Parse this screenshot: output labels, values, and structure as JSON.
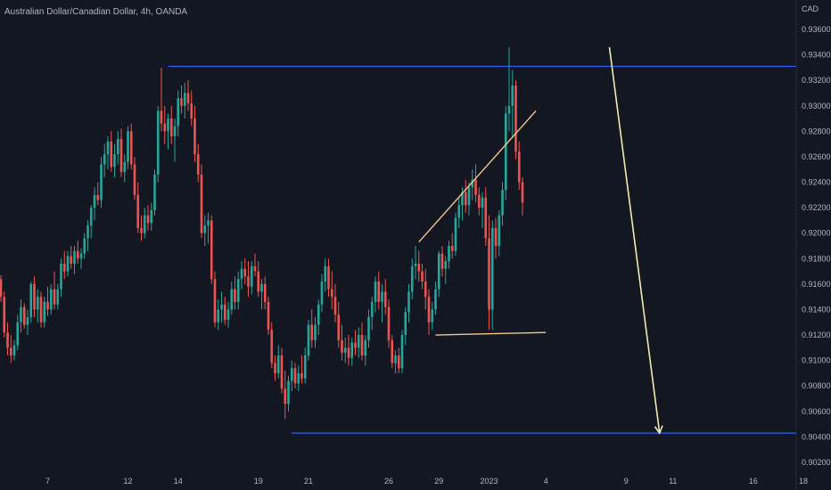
{
  "symbol_title": "Australian Dollar/Canadian Dollar, 4h, OANDA",
  "currency_label": "CAD",
  "colors": {
    "background": "#131722",
    "up": "#26a69a",
    "down": "#ef5350",
    "level_line": "#2962ff",
    "pattern_line": "#f5c48a",
    "arrow": "#f0ecb0",
    "axis_text": "#b2b5be"
  },
  "chart_data": {
    "type": "candlestick",
    "title": "Australian Dollar/Canadian Dollar, 4h, OANDA",
    "ylabel": "CAD",
    "ylim": [
      0.9012,
      0.9372
    ],
    "grid": false,
    "y_ticks": [
      "0.93600",
      "0.93400",
      "0.93200",
      "0.93000",
      "0.92800",
      "0.92600",
      "0.92400",
      "0.92200",
      "0.92000",
      "0.91800",
      "0.91600",
      "0.91400",
      "0.91200",
      "0.91000",
      "0.90800",
      "0.90600",
      "0.90400",
      "0.90200"
    ],
    "x_ticks": [
      {
        "label": "7",
        "index": 14
      },
      {
        "label": "12",
        "index": 38
      },
      {
        "label": "14",
        "index": 53
      },
      {
        "label": "19",
        "index": 77
      },
      {
        "label": "21",
        "index": 92
      },
      {
        "label": "26",
        "index": 116
      },
      {
        "label": "29",
        "index": 131
      },
      {
        "label": "2023",
        "index": 146
      },
      {
        "label": "4",
        "index": 163
      },
      {
        "label": "9",
        "index": 187
      },
      {
        "label": "11",
        "index": 201
      },
      {
        "label": "16",
        "index": 225
      },
      {
        "label": "18",
        "index": 240
      }
    ],
    "candles": [
      [
        0.9164,
        0.9167,
        0.9146,
        0.915
      ],
      [
        0.915,
        0.9154,
        0.9118,
        0.9122
      ],
      [
        0.9122,
        0.913,
        0.9104,
        0.911
      ],
      [
        0.911,
        0.912,
        0.9098,
        0.9104
      ],
      [
        0.9104,
        0.9116,
        0.91,
        0.9112
      ],
      [
        0.9112,
        0.9136,
        0.9108,
        0.913
      ],
      [
        0.913,
        0.9148,
        0.9122,
        0.9142
      ],
      [
        0.9142,
        0.9145,
        0.9125,
        0.9128
      ],
      [
        0.9128,
        0.914,
        0.912,
        0.9134
      ],
      [
        0.9134,
        0.9162,
        0.913,
        0.916
      ],
      [
        0.916,
        0.9166,
        0.9134,
        0.914
      ],
      [
        0.914,
        0.9156,
        0.913,
        0.915
      ],
      [
        0.915,
        0.9154,
        0.9126,
        0.913
      ],
      [
        0.913,
        0.915,
        0.9126,
        0.9146
      ],
      [
        0.9146,
        0.9158,
        0.9135,
        0.914
      ],
      [
        0.914,
        0.916,
        0.9136,
        0.9156
      ],
      [
        0.9156,
        0.917,
        0.914,
        0.9144
      ],
      [
        0.9144,
        0.916,
        0.914,
        0.9156
      ],
      [
        0.9156,
        0.918,
        0.915,
        0.9176
      ],
      [
        0.9176,
        0.9186,
        0.9164,
        0.917
      ],
      [
        0.917,
        0.9186,
        0.9166,
        0.9182
      ],
      [
        0.9182,
        0.919,
        0.9172,
        0.9176
      ],
      [
        0.9176,
        0.919,
        0.9168,
        0.9186
      ],
      [
        0.9186,
        0.9194,
        0.9176,
        0.918
      ],
      [
        0.918,
        0.9188,
        0.9172,
        0.9184
      ],
      [
        0.9184,
        0.92,
        0.918,
        0.9196
      ],
      [
        0.9196,
        0.921,
        0.9186,
        0.9206
      ],
      [
        0.9206,
        0.9222,
        0.9196,
        0.922
      ],
      [
        0.922,
        0.9236,
        0.921,
        0.923
      ],
      [
        0.923,
        0.924,
        0.9222,
        0.9226
      ],
      [
        0.9226,
        0.926,
        0.922,
        0.9254
      ],
      [
        0.9254,
        0.927,
        0.9244,
        0.9262
      ],
      [
        0.9262,
        0.9276,
        0.925,
        0.9272
      ],
      [
        0.9272,
        0.928,
        0.9248,
        0.9252
      ],
      [
        0.9252,
        0.927,
        0.9244,
        0.9262
      ],
      [
        0.9262,
        0.928,
        0.9254,
        0.9274
      ],
      [
        0.9274,
        0.9282,
        0.9244,
        0.9248
      ],
      [
        0.9248,
        0.9262,
        0.924,
        0.9256
      ],
      [
        0.9256,
        0.9284,
        0.925,
        0.928
      ],
      [
        0.928,
        0.9286,
        0.925,
        0.9254
      ],
      [
        0.9254,
        0.926,
        0.9226,
        0.923
      ],
      [
        0.923,
        0.924,
        0.92,
        0.9204
      ],
      [
        0.9204,
        0.9214,
        0.9194,
        0.92
      ],
      [
        0.92,
        0.922,
        0.9196,
        0.9214
      ],
      [
        0.9214,
        0.9222,
        0.9202,
        0.9208
      ],
      [
        0.9208,
        0.9224,
        0.9202,
        0.9218
      ],
      [
        0.9218,
        0.925,
        0.9214,
        0.9246
      ],
      [
        0.9246,
        0.93,
        0.924,
        0.9296
      ],
      [
        0.9296,
        0.933,
        0.928,
        0.9286
      ],
      [
        0.9286,
        0.93,
        0.927,
        0.928
      ],
      [
        0.928,
        0.9294,
        0.9266,
        0.929
      ],
      [
        0.929,
        0.93,
        0.927,
        0.9276
      ],
      [
        0.9276,
        0.929,
        0.9256,
        0.9284
      ],
      [
        0.9284,
        0.9312,
        0.9276,
        0.9306
      ],
      [
        0.9306,
        0.9316,
        0.9294,
        0.93
      ],
      [
        0.93,
        0.9318,
        0.929,
        0.931
      ],
      [
        0.931,
        0.932,
        0.9296,
        0.9302
      ],
      [
        0.9302,
        0.9312,
        0.9284,
        0.929
      ],
      [
        0.929,
        0.93,
        0.9256,
        0.9262
      ],
      [
        0.9262,
        0.927,
        0.924,
        0.9246
      ],
      [
        0.9246,
        0.9254,
        0.9196,
        0.92
      ],
      [
        0.92,
        0.9214,
        0.919,
        0.9206
      ],
      [
        0.9206,
        0.9216,
        0.9192,
        0.921
      ],
      [
        0.921,
        0.9214,
        0.916,
        0.9164
      ],
      [
        0.9164,
        0.917,
        0.9126,
        0.913
      ],
      [
        0.913,
        0.9148,
        0.9124,
        0.914
      ],
      [
        0.914,
        0.9154,
        0.913,
        0.9144
      ],
      [
        0.9144,
        0.915,
        0.9128,
        0.9132
      ],
      [
        0.9132,
        0.9146,
        0.9126,
        0.914
      ],
      [
        0.914,
        0.9162,
        0.9136,
        0.9156
      ],
      [
        0.9156,
        0.9166,
        0.914,
        0.9146
      ],
      [
        0.9146,
        0.917,
        0.914,
        0.9164
      ],
      [
        0.9164,
        0.9178,
        0.9156,
        0.9172
      ],
      [
        0.9172,
        0.918,
        0.916,
        0.9166
      ],
      [
        0.9166,
        0.9178,
        0.915,
        0.9158
      ],
      [
        0.9158,
        0.9178,
        0.9152,
        0.9174
      ],
      [
        0.9174,
        0.9184,
        0.9166,
        0.917
      ],
      [
        0.917,
        0.9178,
        0.915,
        0.9154
      ],
      [
        0.9154,
        0.9164,
        0.914,
        0.916
      ],
      [
        0.916,
        0.9166,
        0.914,
        0.9146
      ],
      [
        0.9146,
        0.915,
        0.912,
        0.9124
      ],
      [
        0.9124,
        0.913,
        0.9094,
        0.9098
      ],
      [
        0.9098,
        0.9104,
        0.9084,
        0.909
      ],
      [
        0.909,
        0.9112,
        0.9086,
        0.9104
      ],
      [
        0.9104,
        0.911,
        0.9074,
        0.9078
      ],
      [
        0.9078,
        0.9092,
        0.9054,
        0.9066
      ],
      [
        0.9066,
        0.9088,
        0.906,
        0.9084
      ],
      [
        0.9084,
        0.91,
        0.9076,
        0.9094
      ],
      [
        0.9094,
        0.9098,
        0.9078,
        0.9082
      ],
      [
        0.9082,
        0.9096,
        0.9076,
        0.909
      ],
      [
        0.909,
        0.9104,
        0.9082,
        0.9086
      ],
      [
        0.9086,
        0.911,
        0.9082,
        0.9104
      ],
      [
        0.9104,
        0.9132,
        0.91,
        0.9128
      ],
      [
        0.9128,
        0.914,
        0.911,
        0.9116
      ],
      [
        0.9116,
        0.9134,
        0.911,
        0.9128
      ],
      [
        0.9128,
        0.9148,
        0.912,
        0.9144
      ],
      [
        0.9144,
        0.9168,
        0.9138,
        0.9162
      ],
      [
        0.9162,
        0.918,
        0.9154,
        0.9174
      ],
      [
        0.9174,
        0.918,
        0.915,
        0.9156
      ],
      [
        0.9156,
        0.917,
        0.914,
        0.915
      ],
      [
        0.915,
        0.916,
        0.913,
        0.9136
      ],
      [
        0.9136,
        0.9146,
        0.911,
        0.9116
      ],
      [
        0.9116,
        0.9128,
        0.91,
        0.9106
      ],
      [
        0.9106,
        0.9118,
        0.9098,
        0.911
      ],
      [
        0.911,
        0.912,
        0.9096,
        0.9102
      ],
      [
        0.9102,
        0.9118,
        0.9096,
        0.9114
      ],
      [
        0.9114,
        0.9124,
        0.9104,
        0.911
      ],
      [
        0.911,
        0.9126,
        0.9102,
        0.912
      ],
      [
        0.912,
        0.913,
        0.91,
        0.9104
      ],
      [
        0.9104,
        0.912,
        0.9096,
        0.9116
      ],
      [
        0.9116,
        0.914,
        0.911,
        0.9134
      ],
      [
        0.9134,
        0.915,
        0.9124,
        0.9146
      ],
      [
        0.9146,
        0.9166,
        0.9138,
        0.9162
      ],
      [
        0.9162,
        0.917,
        0.914,
        0.9146
      ],
      [
        0.9146,
        0.916,
        0.913,
        0.9154
      ],
      [
        0.9154,
        0.9164,
        0.9136,
        0.9142
      ],
      [
        0.9142,
        0.9148,
        0.911,
        0.9116
      ],
      [
        0.9116,
        0.912,
        0.9094,
        0.9098
      ],
      [
        0.9098,
        0.9108,
        0.909,
        0.9104
      ],
      [
        0.9104,
        0.911,
        0.909,
        0.9094
      ],
      [
        0.9094,
        0.9124,
        0.909,
        0.912
      ],
      [
        0.912,
        0.9142,
        0.9112,
        0.9138
      ],
      [
        0.9138,
        0.916,
        0.913,
        0.9154
      ],
      [
        0.9154,
        0.918,
        0.9148,
        0.9174
      ],
      [
        0.9174,
        0.919,
        0.9164,
        0.9176
      ],
      [
        0.9176,
        0.9186,
        0.9162,
        0.917
      ],
      [
        0.917,
        0.9176,
        0.9156,
        0.9162
      ],
      [
        0.9162,
        0.9172,
        0.914,
        0.915
      ],
      [
        0.915,
        0.9156,
        0.912,
        0.913
      ],
      [
        0.913,
        0.9146,
        0.9124,
        0.914
      ],
      [
        0.914,
        0.9162,
        0.9136,
        0.9156
      ],
      [
        0.9156,
        0.9186,
        0.915,
        0.9184
      ],
      [
        0.9184,
        0.919,
        0.9166,
        0.9172
      ],
      [
        0.9172,
        0.9182,
        0.916,
        0.9178
      ],
      [
        0.9178,
        0.9194,
        0.9172,
        0.919
      ],
      [
        0.919,
        0.92,
        0.918,
        0.9186
      ],
      [
        0.9186,
        0.9216,
        0.9182,
        0.9212
      ],
      [
        0.9212,
        0.9228,
        0.9204,
        0.9222
      ],
      [
        0.9222,
        0.9236,
        0.921,
        0.9232
      ],
      [
        0.9232,
        0.9242,
        0.9216,
        0.9222
      ],
      [
        0.9222,
        0.924,
        0.9214,
        0.9236
      ],
      [
        0.9236,
        0.925,
        0.9226,
        0.9242
      ],
      [
        0.9242,
        0.9254,
        0.9224,
        0.923
      ],
      [
        0.923,
        0.9236,
        0.9214,
        0.922
      ],
      [
        0.922,
        0.9232,
        0.9204,
        0.9228
      ],
      [
        0.9228,
        0.9236,
        0.919,
        0.9196
      ],
      [
        0.9196,
        0.9214,
        0.9124,
        0.914
      ],
      [
        0.914,
        0.921,
        0.9124,
        0.9204
      ],
      [
        0.9204,
        0.9212,
        0.918,
        0.919
      ],
      [
        0.919,
        0.9218,
        0.9182,
        0.9214
      ],
      [
        0.9214,
        0.924,
        0.9206,
        0.9234
      ],
      [
        0.9234,
        0.93,
        0.9226,
        0.9294
      ],
      [
        0.9294,
        0.9346,
        0.928,
        0.93
      ],
      [
        0.93,
        0.9328,
        0.9276,
        0.9316
      ],
      [
        0.9316,
        0.932,
        0.9258,
        0.9264
      ],
      [
        0.9264,
        0.9272,
        0.9234,
        0.924
      ],
      [
        0.924,
        0.9244,
        0.9214,
        0.9224
      ]
    ],
    "horizontal_levels": [
      {
        "price": 0.9331,
        "from_index": 50,
        "color": "#2962ff"
      },
      {
        "price": 0.9043,
        "from_index": 87,
        "color": "#2962ff"
      }
    ],
    "pattern_lines": [
      {
        "from": [
          125,
          0.9193
        ],
        "to": [
          160,
          0.9296
        ]
      },
      {
        "from": [
          130,
          0.912
        ],
        "to": [
          163,
          0.9122
        ]
      }
    ],
    "arrow": {
      "from": [
        182,
        0.9346
      ],
      "to": [
        197,
        0.9043
      ]
    }
  }
}
